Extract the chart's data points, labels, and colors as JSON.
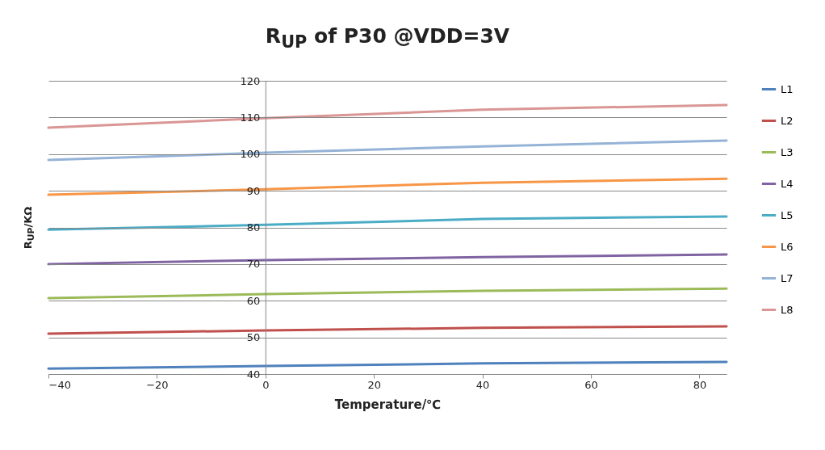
{
  "chart_data": {
    "type": "line",
    "title": "R$_{UP}$ of P30 @VDD=3V",
    "xlabel": "Temperature/℃",
    "ylabel": "R$_{UP}$/KΩ",
    "x": [
      -40,
      0,
      40,
      85
    ],
    "xlim": [
      -40,
      85
    ],
    "xticks": [
      -40,
      -20,
      0,
      20,
      40,
      60,
      80
    ],
    "ylim": [
      40,
      120
    ],
    "yticks": [
      40,
      50,
      60,
      70,
      80,
      90,
      100,
      110,
      120
    ],
    "grid": "y",
    "legend": "right",
    "marker": "none",
    "series": [
      {
        "name": "L1",
        "color": "#4f81bd",
        "values": [
          41.5,
          42.2,
          42.9,
          43.3
        ]
      },
      {
        "name": "L2",
        "color": "#c0504d",
        "values": [
          51.0,
          51.9,
          52.6,
          53.0
        ]
      },
      {
        "name": "L3",
        "color": "#9bbb59",
        "values": [
          60.7,
          61.8,
          62.7,
          63.3
        ]
      },
      {
        "name": "L4",
        "color": "#8064a2",
        "values": [
          70.0,
          71.1,
          71.9,
          72.6
        ]
      },
      {
        "name": "L5",
        "color": "#4bacc6",
        "values": [
          79.4,
          80.7,
          82.3,
          83.0
        ]
      },
      {
        "name": "L6",
        "color": "#f79646",
        "values": [
          88.9,
          90.4,
          92.2,
          93.3
        ]
      },
      {
        "name": "L7",
        "color": "#95b3d7",
        "values": [
          98.4,
          100.4,
          102.1,
          103.7
        ]
      },
      {
        "name": "L8",
        "color": "#d99694",
        "values": [
          107.2,
          109.8,
          112.1,
          113.4
        ]
      }
    ]
  }
}
